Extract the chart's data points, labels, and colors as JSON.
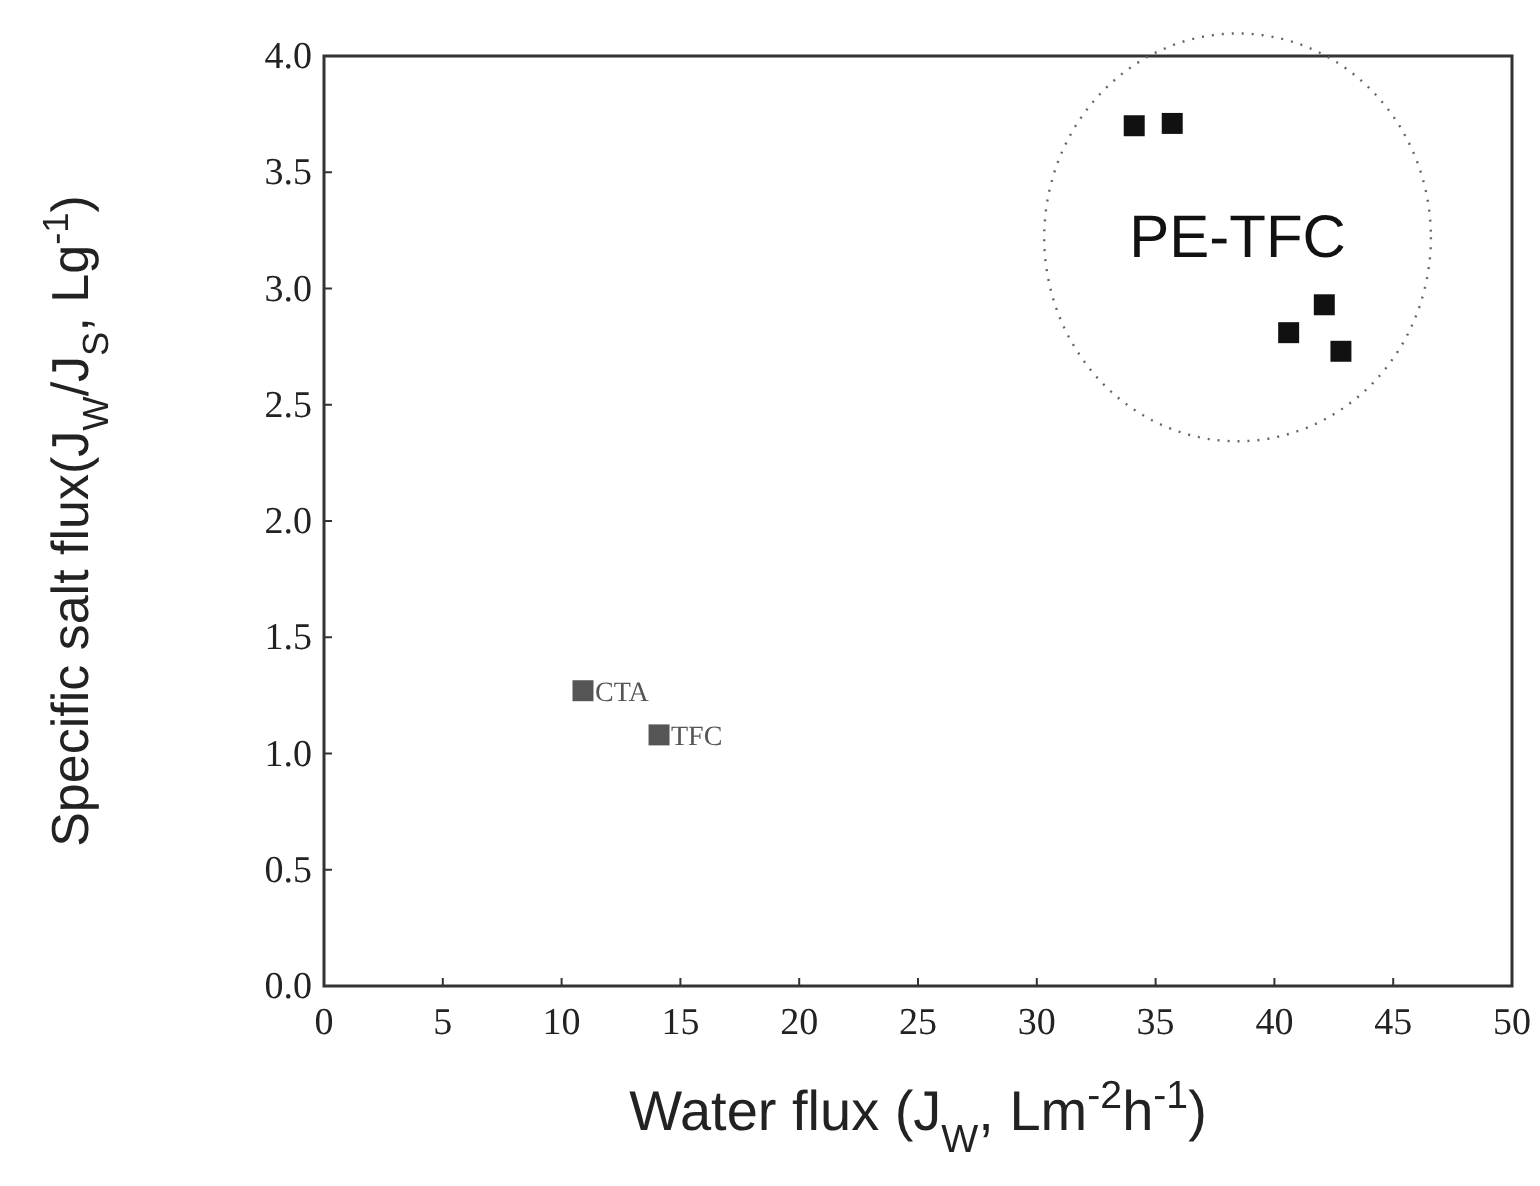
{
  "chart_data": {
    "type": "scatter",
    "xlabel": "Water flux (J$_{W}$, Lm$^{-2}$h$^{-1}$)",
    "ylabel": "Specific salt flux(J$_{W}$/J$_{S}$, Lg$^{-1}$)",
    "xlim": [
      0,
      50
    ],
    "xticks": [
      0,
      5,
      10,
      15,
      20,
      25,
      30,
      35,
      40,
      45,
      50
    ],
    "ylim": [
      0,
      4
    ],
    "yticks": [
      {
        "value": 0,
        "label": "0.0"
      },
      {
        "value": 0.5,
        "label": "0.5"
      },
      {
        "value": 1,
        "label": "1.0"
      },
      {
        "value": 1.5,
        "label": "1.5"
      },
      {
        "value": 2,
        "label": "2.0"
      },
      {
        "value": 2.5,
        "label": "2.5"
      },
      {
        "value": 3,
        "label": "3.0"
      },
      {
        "value": 3.5,
        "label": "3.5"
      },
      {
        "value": 4,
        "label": "4.0"
      }
    ],
    "marker": "square",
    "grid": false,
    "series": [
      {
        "name": "PE-TFC",
        "color": "#111111",
        "x": [
          34.1,
          35.7,
          42.1,
          40.6,
          42.8
        ],
        "values": [
          3.7,
          3.71,
          2.93,
          2.81,
          2.73
        ]
      },
      {
        "name": "CTA",
        "color": "#555555",
        "x": [
          10.9
        ],
        "values": [
          1.27
        ]
      },
      {
        "name": "TFC",
        "color": "#555555",
        "x": [
          14.1
        ],
        "values": [
          1.08
        ]
      }
    ]
  }
}
